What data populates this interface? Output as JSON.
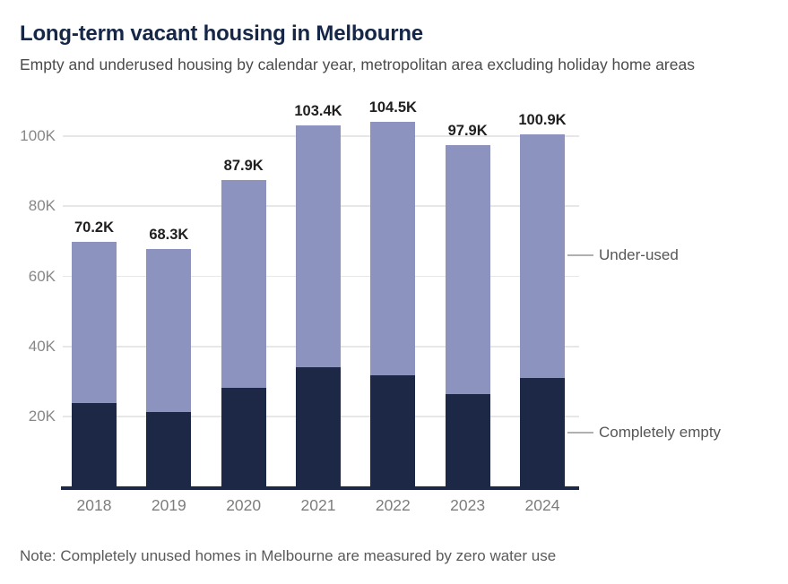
{
  "page": {
    "title": "Long-term vacant housing in Melbourne",
    "subtitle": "Empty and underused housing by calendar year, metropolitan area excluding holiday home areas",
    "note": "Note: Completely unused homes in Melbourne are measured by zero water use"
  },
  "colors": {
    "title_navy": "#152647",
    "bar_dark_navy": "#1c2845",
    "bar_light_purple": "#8b93be",
    "axis_line": "#1c2845",
    "gridline": "#e7e7e7",
    "tick_gray": "#7d7d7d",
    "annotation_gray": "#565656"
  },
  "chart_data": {
    "type": "bar",
    "stacked": true,
    "title": "Long-term vacant housing in Melbourne",
    "subtitle": "Empty and underused housing by calendar year, metropolitan area excluding holiday home areas",
    "xlabel": "",
    "ylabel": "",
    "unit": "thousands of dwellings",
    "categories": [
      "2018",
      "2019",
      "2020",
      "2021",
      "2022",
      "2023",
      "2024"
    ],
    "series": [
      {
        "name": "Completely empty",
        "color": "#1c2845",
        "values": [
          24.3,
          21.8,
          28.5,
          34.5,
          32.2,
          26.9,
          31.5
        ]
      },
      {
        "name": "Under-used",
        "color": "#8b93be",
        "values": [
          45.9,
          46.5,
          59.4,
          68.9,
          72.3,
          71.0,
          69.4
        ]
      }
    ],
    "totals": [
      70.2,
      68.3,
      87.9,
      103.4,
      104.5,
      97.9,
      100.9
    ],
    "total_labels": [
      "70.2K",
      "68.3K",
      "87.9K",
      "103.4K",
      "104.5K",
      "97.9K",
      "100.9K"
    ],
    "y_ticks": [
      20,
      40,
      60,
      80,
      100
    ],
    "y_tick_labels": [
      "20K",
      "40K",
      "60K",
      "80K",
      "100K"
    ],
    "ylim": [
      0,
      110.7
    ],
    "grid": true,
    "legend_position": "direct-label-right",
    "annotations": [
      {
        "label": "Under-used",
        "value_k": 66.0
      },
      {
        "label": "Completely empty",
        "value_k": 15.4
      }
    ]
  }
}
